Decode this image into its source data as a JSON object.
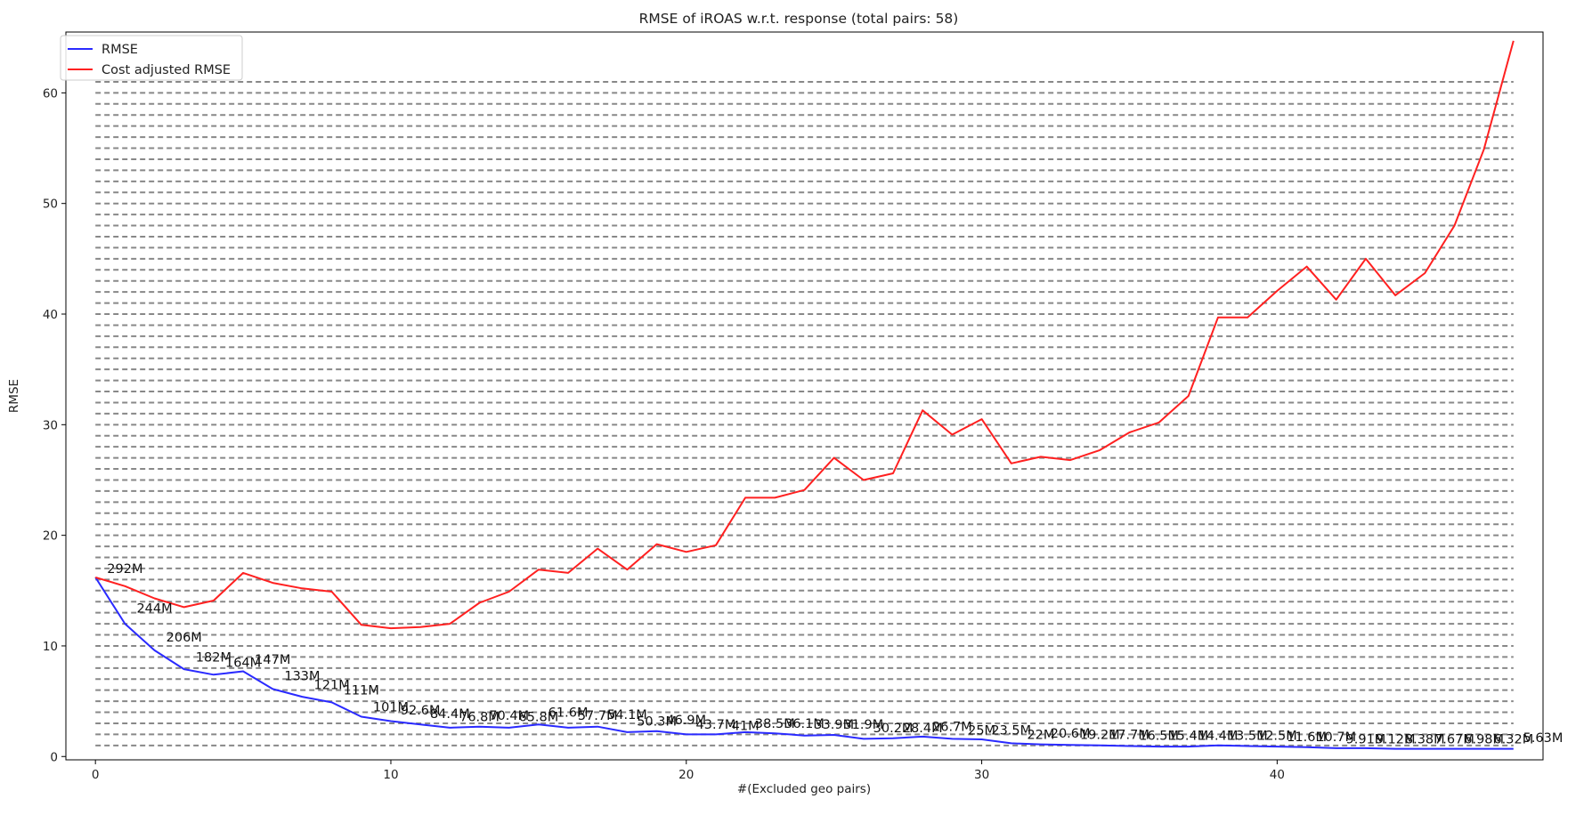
{
  "chart_data": {
    "type": "line",
    "title": "RMSE of iROAS w.r.t. response (total pairs: 58)",
    "xlabel": "#(Excluded geo pairs)",
    "ylabel": "RMSE",
    "xlim": [
      -1,
      49
    ],
    "ylim": [
      -0.3,
      65.5
    ],
    "xticks": [
      0,
      10,
      20,
      30,
      40
    ],
    "yticks": [
      0,
      10,
      20,
      30,
      40,
      50,
      60
    ],
    "grid": "horizontal dashed lines at every integer y from 1 to 61",
    "legend_position": "top-left",
    "x": [
      0,
      1,
      2,
      3,
      4,
      5,
      6,
      7,
      8,
      9,
      10,
      11,
      12,
      13,
      14,
      15,
      16,
      17,
      18,
      19,
      20,
      21,
      22,
      23,
      24,
      25,
      26,
      27,
      28,
      29,
      30,
      31,
      32,
      33,
      34,
      35,
      36,
      37,
      38,
      39,
      40,
      41,
      42,
      43,
      44,
      45,
      46,
      47,
      48
    ],
    "series": [
      {
        "name": "RMSE",
        "color": "#2a2aff",
        "values": [
          16.2,
          12.0,
          9.6,
          7.9,
          7.4,
          7.7,
          6.1,
          5.4,
          4.9,
          3.6,
          3.2,
          2.9,
          2.6,
          2.7,
          2.6,
          2.9,
          2.6,
          2.7,
          2.2,
          2.3,
          2.0,
          2.0,
          2.2,
          2.1,
          1.9,
          1.95,
          1.6,
          1.65,
          1.8,
          1.6,
          1.55,
          1.2,
          1.1,
          1.05,
          1.0,
          0.95,
          0.9,
          0.9,
          1.0,
          0.95,
          0.9,
          0.85,
          0.75,
          0.75,
          0.7,
          0.7,
          0.7,
          0.7,
          0.7
        ]
      },
      {
        "name": "Cost adjusted RMSE",
        "color": "#ff2020",
        "values": [
          16.2,
          15.4,
          14.3,
          13.5,
          14.1,
          16.6,
          15.7,
          15.2,
          14.9,
          11.9,
          11.6,
          11.7,
          12.0,
          13.9,
          14.9,
          16.9,
          16.6,
          18.8,
          16.9,
          19.2,
          18.5,
          19.1,
          23.4,
          23.4,
          24.1,
          27.0,
          25.0,
          25.6,
          31.3,
          29.1,
          30.5,
          26.5,
          27.1,
          26.8,
          27.7,
          29.3,
          30.2,
          32.6,
          39.7,
          39.7,
          42.1,
          44.3,
          41.3,
          45.0,
          41.7,
          43.7,
          48.0,
          54.9,
          64.7
        ]
      }
    ],
    "annotations": [
      {
        "text": "292M",
        "x": 1,
        "y": 16.6
      },
      {
        "text": "244M",
        "x": 2,
        "y": 13.0
      },
      {
        "text": "206M",
        "x": 3,
        "y": 10.4
      },
      {
        "text": "182M",
        "x": 4,
        "y": 8.6
      },
      {
        "text": "164M",
        "x": 5,
        "y": 8.1
      },
      {
        "text": "147M",
        "x": 6,
        "y": 8.4
      },
      {
        "text": "133M",
        "x": 7,
        "y": 6.9
      },
      {
        "text": "121M",
        "x": 8,
        "y": 6.1
      },
      {
        "text": "111M",
        "x": 9,
        "y": 5.6
      },
      {
        "text": "101M",
        "x": 10,
        "y": 4.1
      },
      {
        "text": "92.6M",
        "x": 11,
        "y": 3.8
      },
      {
        "text": "84.4M",
        "x": 12,
        "y": 3.5
      },
      {
        "text": "76.8M",
        "x": 13,
        "y": 3.2
      },
      {
        "text": "70.4M",
        "x": 14,
        "y": 3.3
      },
      {
        "text": "65.8M",
        "x": 15,
        "y": 3.2
      },
      {
        "text": "61.6M",
        "x": 16,
        "y": 3.6
      },
      {
        "text": "57.7M",
        "x": 17,
        "y": 3.3
      },
      {
        "text": "54.1M",
        "x": 18,
        "y": 3.4
      },
      {
        "text": "50.3M",
        "x": 19,
        "y": 2.8
      },
      {
        "text": "46.9M",
        "x": 20,
        "y": 2.9
      },
      {
        "text": "43.7M",
        "x": 21,
        "y": 2.5
      },
      {
        "text": "41M",
        "x": 22,
        "y": 2.4
      },
      {
        "text": "38.5M",
        "x": 23,
        "y": 2.6
      },
      {
        "text": "36.1M",
        "x": 24,
        "y": 2.6
      },
      {
        "text": "33.9M",
        "x": 25,
        "y": 2.5
      },
      {
        "text": "31.9M",
        "x": 26,
        "y": 2.5
      },
      {
        "text": "30.2M",
        "x": 27,
        "y": 2.2
      },
      {
        "text": "28.4M",
        "x": 28,
        "y": 2.2
      },
      {
        "text": "26.7M",
        "x": 29,
        "y": 2.3
      },
      {
        "text": "25M",
        "x": 30,
        "y": 2.0
      },
      {
        "text": "23.5M",
        "x": 31,
        "y": 2.0
      },
      {
        "text": "22M",
        "x": 32,
        "y": 1.6
      },
      {
        "text": "20.6M",
        "x": 33,
        "y": 1.7
      },
      {
        "text": "19.2M",
        "x": 34,
        "y": 1.6
      },
      {
        "text": "17.7M",
        "x": 35,
        "y": 1.6
      },
      {
        "text": "16.5M",
        "x": 36,
        "y": 1.5
      },
      {
        "text": "15.4M",
        "x": 37,
        "y": 1.5
      },
      {
        "text": "14.4M",
        "x": 38,
        "y": 1.5
      },
      {
        "text": "13.5M",
        "x": 39,
        "y": 1.5
      },
      {
        "text": "12.5M",
        "x": 40,
        "y": 1.5
      },
      {
        "text": "11.6M",
        "x": 41,
        "y": 1.4
      },
      {
        "text": "10.7M",
        "x": 42,
        "y": 1.4
      },
      {
        "text": "9.91M",
        "x": 43,
        "y": 1.2
      },
      {
        "text": "9.12M",
        "x": 44,
        "y": 1.2
      },
      {
        "text": "8.38M",
        "x": 45,
        "y": 1.2
      },
      {
        "text": "7.67M",
        "x": 46,
        "y": 1.2
      },
      {
        "text": "6.98M",
        "x": 47,
        "y": 1.2
      },
      {
        "text": "6.32M",
        "x": 48,
        "y": 1.2
      },
      {
        "text": "5.63M",
        "x": 49,
        "y": 1.3
      }
    ]
  }
}
